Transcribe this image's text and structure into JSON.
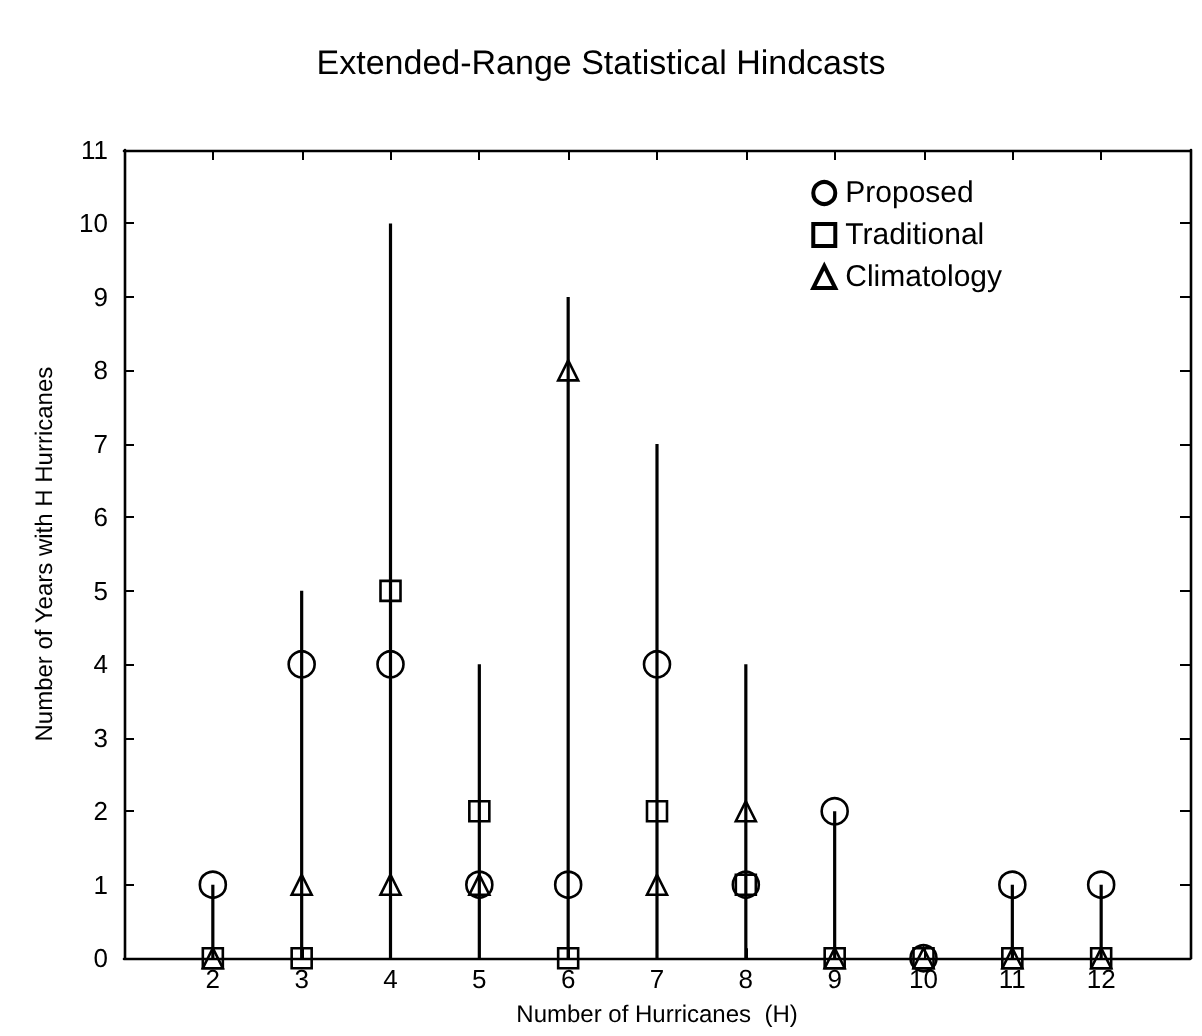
{
  "chart_data": {
    "type": "scatter",
    "title": "Extended-Range Statistical Hindcasts",
    "xlabel": "Number of Hurricanes  (H)",
    "ylabel": "Number of Years with H Hurricanes",
    "x": [
      2,
      3,
      4,
      5,
      6,
      7,
      8,
      9,
      10,
      11,
      12
    ],
    "series": [
      {
        "type": "bar",
        "color": "#000000",
        "values": [
          1,
          5,
          10,
          4,
          9,
          7,
          4,
          2,
          0,
          1,
          1
        ]
      },
      {
        "name": "Proposed",
        "marker": "circle",
        "color": "#000000",
        "values": [
          1,
          4,
          4,
          1,
          1,
          4,
          1,
          2,
          0,
          1,
          1
        ]
      },
      {
        "name": "Traditional",
        "marker": "square",
        "color": "#000000",
        "values": [
          0,
          0,
          5,
          2,
          0,
          2,
          1,
          0,
          0,
          0,
          0
        ]
      },
      {
        "name": "Climatology",
        "marker": "triangle",
        "color": "#000000",
        "values": [
          0,
          1,
          1,
          1,
          8,
          1,
          2,
          0,
          0,
          0,
          0
        ]
      }
    ],
    "xlim": [
      1,
      13
    ],
    "xticks": [
      2,
      3,
      4,
      5,
      6,
      7,
      8,
      9,
      10,
      11,
      12
    ],
    "ylim": [
      0,
      11
    ],
    "yticks": [
      0,
      1,
      2,
      3,
      4,
      5,
      6,
      7,
      8,
      9,
      10,
      11
    ],
    "grid": false,
    "legend": "top right"
  }
}
